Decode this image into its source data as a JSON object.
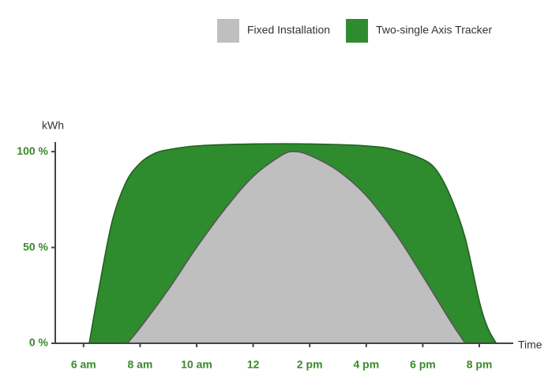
{
  "chart_data": {
    "type": "area",
    "xlabel": "Time",
    "ylabel": "kWh",
    "legend": "top-right",
    "xlim": [
      5,
      21.2
    ],
    "ylim": [
      0,
      105
    ],
    "xticks": [
      {
        "value": 6,
        "label": "6 am"
      },
      {
        "value": 8,
        "label": "8 am"
      },
      {
        "value": 10,
        "label": "10 am"
      },
      12,
      {
        "value": 14,
        "label": "2 pm"
      },
      {
        "value": 16,
        "label": "4 pm"
      },
      {
        "value": 18,
        "label": "6 pm"
      },
      {
        "value": 20,
        "label": "8 pm"
      }
    ],
    "yticks": [
      {
        "value": 0,
        "label": "0 %"
      },
      {
        "value": 50,
        "label": "50 %"
      },
      {
        "value": 100,
        "label": "100 %"
      }
    ],
    "series": [
      {
        "name": "Two-single Axis Tracker",
        "color": "#2e8b2e",
        "x": [
          6.2,
          6.5,
          7,
          7.5,
          8,
          8.5,
          9,
          10,
          12,
          14,
          16,
          17,
          18,
          18.5,
          19,
          19.5,
          20,
          20.3,
          20.6
        ],
        "values": [
          0,
          25,
          63,
          84,
          94,
          99,
          101,
          103,
          104,
          104,
          103,
          101,
          96,
          90,
          76,
          55,
          22,
          8,
          0
        ]
      },
      {
        "name": "Fixed Installation",
        "color": "#bfbfbf",
        "x": [
          7.55,
          8,
          9,
          10,
          11,
          12,
          13,
          13.45,
          14,
          15,
          16,
          17,
          18,
          19,
          19.5
        ],
        "values": [
          0,
          8,
          28,
          50,
          70,
          87,
          98,
          100,
          98,
          90,
          77,
          58,
          35,
          11,
          0
        ]
      }
    ]
  }
}
